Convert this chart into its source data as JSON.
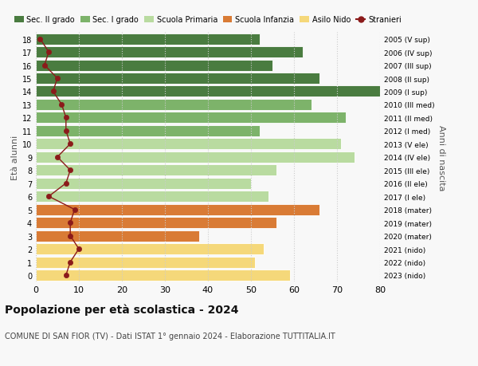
{
  "ages": [
    18,
    17,
    16,
    15,
    14,
    13,
    12,
    11,
    10,
    9,
    8,
    7,
    6,
    5,
    4,
    3,
    2,
    1,
    0
  ],
  "labels_left": [
    "18",
    "17",
    "16",
    "15",
    "14",
    "13",
    "12",
    "11",
    "10",
    "9",
    "8",
    "7",
    "6",
    "5",
    "4",
    "3",
    "2",
    "1",
    "0"
  ],
  "labels_right": [
    "2005 (V sup)",
    "2006 (IV sup)",
    "2007 (III sup)",
    "2008 (II sup)",
    "2009 (I sup)",
    "2010 (III med)",
    "2011 (II med)",
    "2012 (I med)",
    "2013 (V ele)",
    "2014 (IV ele)",
    "2015 (III ele)",
    "2016 (II ele)",
    "2017 (I ele)",
    "2018 (mater)",
    "2019 (mater)",
    "2020 (mater)",
    "2021 (nido)",
    "2022 (nido)",
    "2023 (nido)"
  ],
  "bar_values": [
    52,
    62,
    55,
    66,
    80,
    64,
    72,
    52,
    71,
    74,
    56,
    50,
    54,
    66,
    56,
    38,
    53,
    51,
    59
  ],
  "bar_colors": [
    "#4a7c40",
    "#4a7c40",
    "#4a7c40",
    "#4a7c40",
    "#4a7c40",
    "#7db36a",
    "#7db36a",
    "#7db36a",
    "#b9dba0",
    "#b9dba0",
    "#b9dba0",
    "#b9dba0",
    "#b9dba0",
    "#d97b35",
    "#d97b35",
    "#d97b35",
    "#f5d87a",
    "#f5d87a",
    "#f5d87a"
  ],
  "stranieri_values": [
    1,
    3,
    2,
    5,
    4,
    6,
    7,
    7,
    8,
    5,
    8,
    7,
    3,
    9,
    8,
    8,
    10,
    8,
    7
  ],
  "stranieri_color": "#8b1a1a",
  "legend_labels": [
    "Sec. II grado",
    "Sec. I grado",
    "Scuola Primaria",
    "Scuola Infanzia",
    "Asilo Nido",
    "Stranieri"
  ],
  "legend_colors": [
    "#4a7c40",
    "#7db36a",
    "#b9dba0",
    "#d97b35",
    "#f5d87a",
    "#8b1a1a"
  ],
  "ylabel_left": "Età alunni",
  "ylabel_right": "Anni di nascita",
  "title": "Popolazione per età scolastica - 2024",
  "subtitle": "COMUNE DI SAN FIOR (TV) - Dati ISTAT 1° gennaio 2024 - Elaborazione TUTTITALIA.IT",
  "xlim": [
    0,
    80
  ],
  "xticks": [
    0,
    10,
    20,
    30,
    40,
    50,
    60,
    70,
    80
  ],
  "bg_color": "#f8f8f8"
}
